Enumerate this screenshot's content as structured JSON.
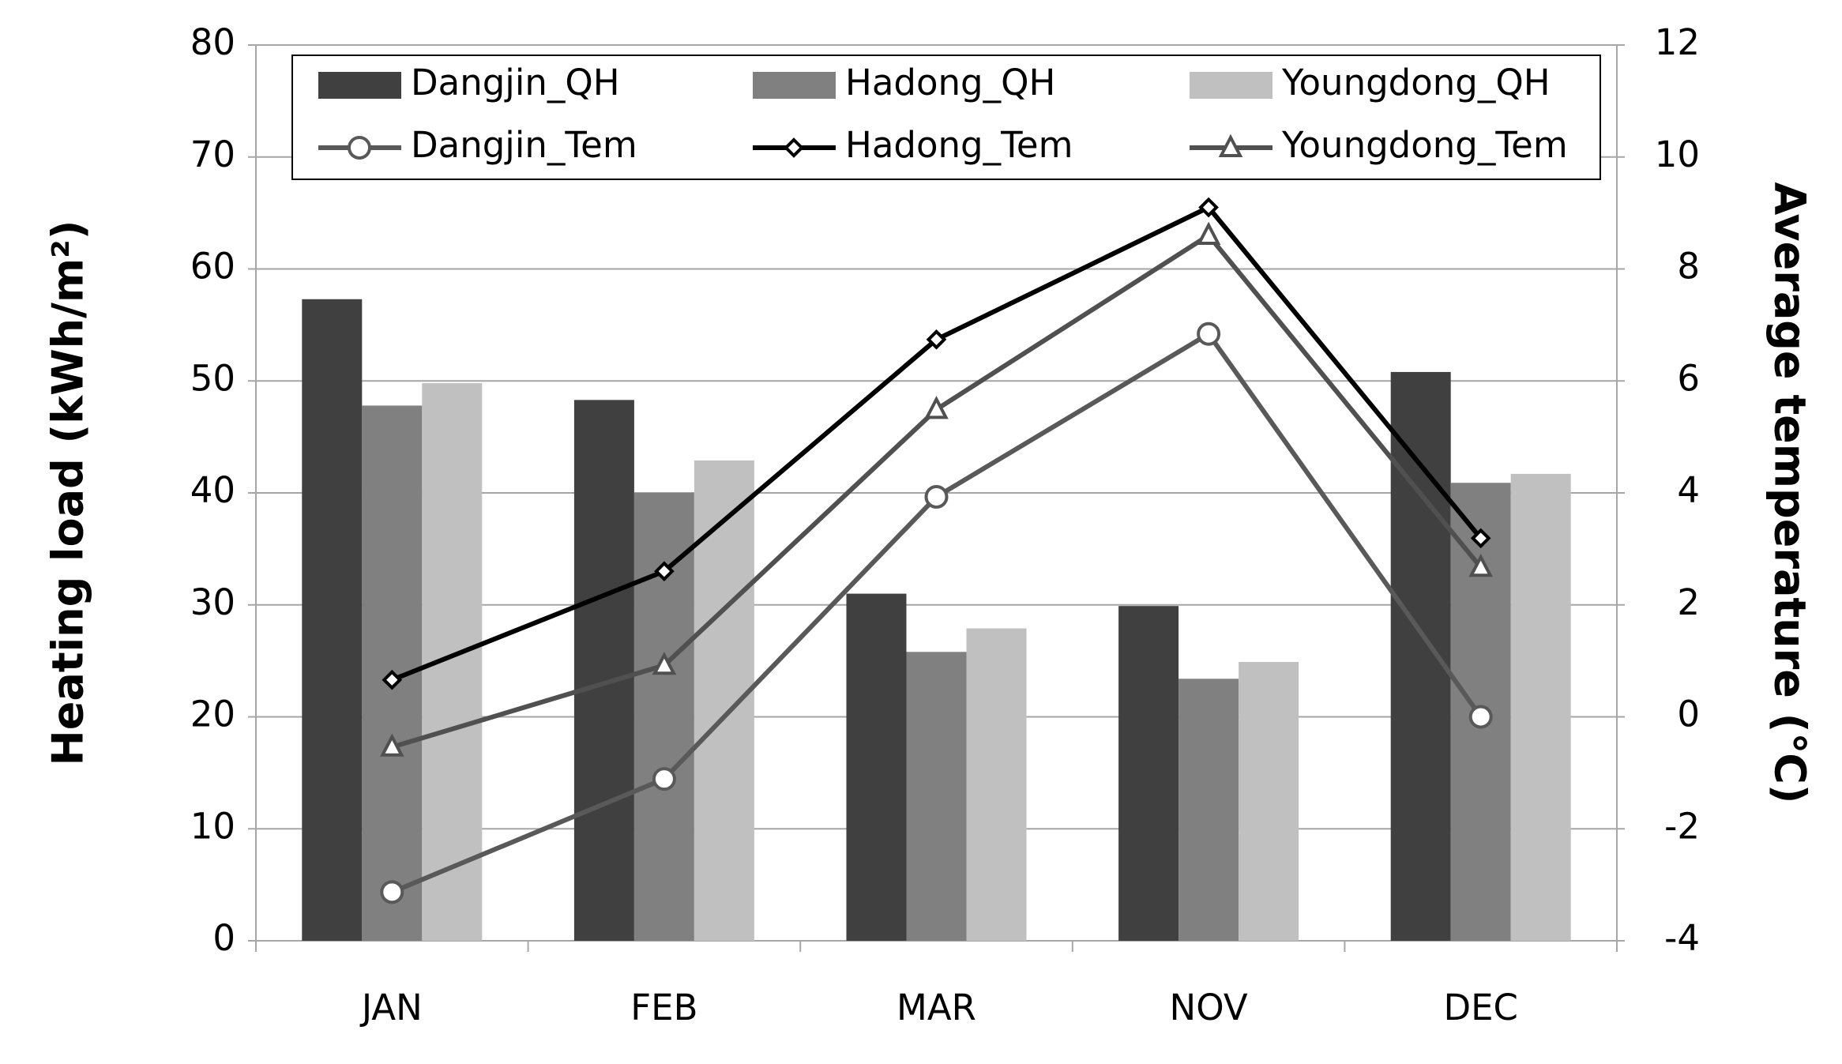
{
  "chart_data": {
    "type": "bar",
    "categories": [
      "JAN",
      "FEB",
      "MAR",
      "NOV",
      "DEC"
    ],
    "y_label": "Heating load (kWh/m²)",
    "y2_label": "Average temperature (℃)",
    "ylim": [
      0,
      80
    ],
    "yticks": [
      0,
      10,
      20,
      30,
      40,
      50,
      60,
      70,
      80
    ],
    "y2lim": [
      -4,
      12
    ],
    "y2ticks": [
      -4,
      -2,
      0,
      2,
      4,
      6,
      8,
      10,
      12
    ],
    "grid": true,
    "series": [
      {
        "name": "Dangjin_QH",
        "type": "bar",
        "color": "#404040",
        "values": [
          57.3,
          48.3,
          31.0,
          29.9,
          50.8
        ]
      },
      {
        "name": "Hadong_QH",
        "type": "bar",
        "color": "#808080",
        "values": [
          47.8,
          40.0,
          25.8,
          23.4,
          40.9
        ]
      },
      {
        "name": "Youngdong_QH",
        "type": "bar",
        "color": "#c0c0c0",
        "values": [
          49.8,
          42.9,
          27.9,
          24.9,
          41.7
        ]
      },
      {
        "name": "Dangjin_Tem",
        "type": "line",
        "axis": "y2",
        "marker": "circle",
        "color": "#595959",
        "values": [
          -3.13,
          -1.11,
          3.93,
          6.84,
          0.0
        ]
      },
      {
        "name": "Hadong_Tem",
        "type": "line",
        "axis": "y2",
        "marker": "diamond",
        "color": "#000000",
        "values": [
          0.66,
          2.6,
          6.74,
          9.1,
          3.19
        ]
      },
      {
        "name": "Youngdong_Tem",
        "type": "line",
        "axis": "y2",
        "marker": "triangle",
        "color": "#505050",
        "values": [
          -0.54,
          0.92,
          5.49,
          8.6,
          2.67
        ]
      }
    ]
  }
}
